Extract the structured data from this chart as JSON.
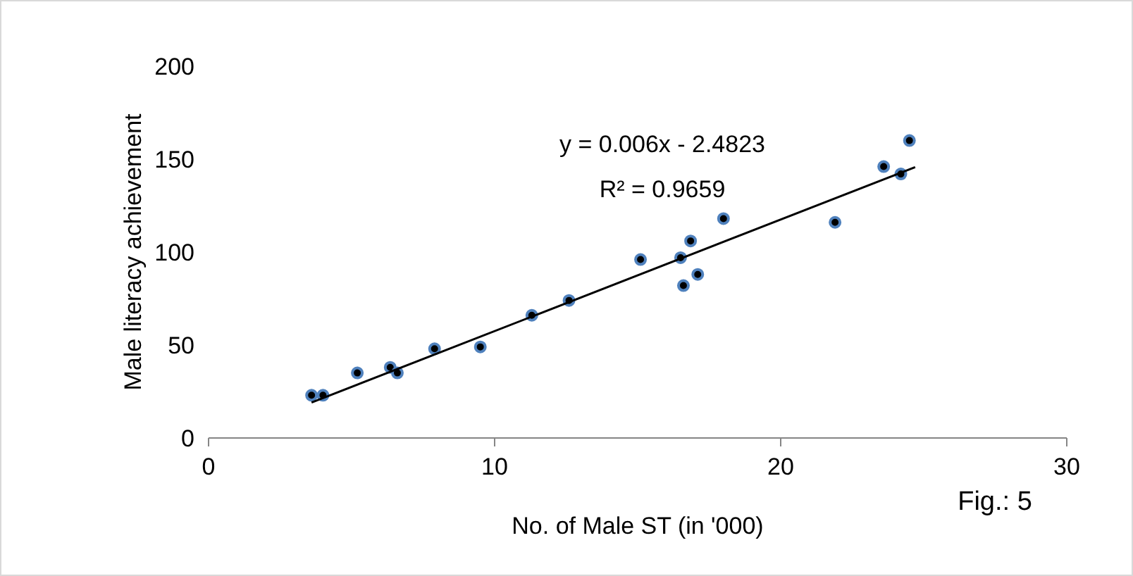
{
  "chart_data": {
    "type": "scatter",
    "xlabel": "No. of Male ST (in '000)",
    "ylabel": "Male literacy achievement",
    "xlim": [
      0,
      30
    ],
    "xticks": [
      0,
      10,
      20,
      30
    ],
    "ylim": [
      0,
      200
    ],
    "yticks": [
      0,
      50,
      100,
      150,
      200
    ],
    "grid": false,
    "annotations": [
      "y = 0.006x - 2.4823",
      "R² = 0.9659",
      "Fig.: 5"
    ],
    "series": [
      {
        "color": "#000000",
        "x": [
          3.6,
          4.0,
          5.2,
          6.35,
          6.6,
          7.9,
          9.5,
          11.3,
          12.6,
          15.1,
          16.5,
          16.85,
          18.0,
          16.6,
          17.1,
          21.9,
          23.6,
          24.2,
          24.5
        ],
        "values": [
          23,
          23,
          35,
          38,
          35,
          48,
          49,
          66,
          74,
          96,
          97,
          106,
          118,
          82,
          88,
          116,
          146,
          142,
          160
        ]
      },
      {
        "type": "line",
        "color": "#000000",
        "x": [
          3.6,
          24.7
        ],
        "values": [
          19.1,
          145.7
        ]
      }
    ]
  }
}
